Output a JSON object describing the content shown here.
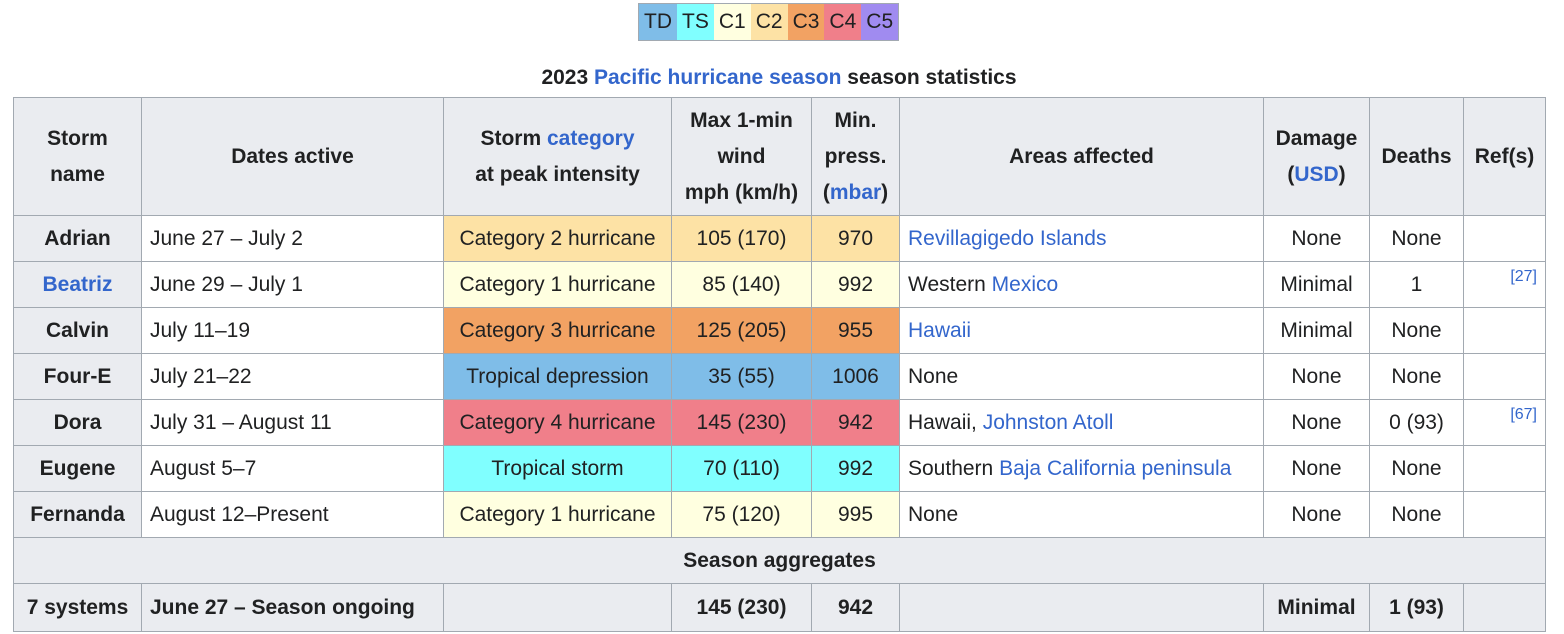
{
  "legend": [
    {
      "label": "TD",
      "color": "#80ccff"
    },
    {
      "label": "TS",
      "color": "#80ffff"
    },
    {
      "label": "C1",
      "color": "#ffffcc"
    },
    {
      "label": "C2",
      "color": "#ffe775"
    },
    {
      "label": "C3",
      "color": "#ffc140"
    },
    {
      "label": "C4",
      "color": "#ff8f20"
    },
    {
      "label": "C5",
      "color": "#ff6060"
    }
  ],
  "legend_colors_display": [
    "#7fbde8",
    "#80ffff",
    "#ffffe0",
    "#fde2a5",
    "#f2a263",
    "#f07f8a",
    "#a08bf0"
  ],
  "caption": {
    "prefix": "2023 ",
    "link": "Pacific hurricane season",
    "suffix": " season statistics"
  },
  "headers": {
    "storm_name": [
      "Storm",
      "name"
    ],
    "dates": "Dates active",
    "category_prefix": "Storm ",
    "category_link": "category",
    "category_suffix": "at peak intensity",
    "wind": [
      "Max 1-min",
      "wind",
      "mph (km/h)"
    ],
    "press_1": "Min.",
    "press_2": "press.",
    "press_link": "mbar",
    "areas": "Areas affected",
    "damage": "Damage",
    "damage_link": "USD",
    "deaths": "Deaths",
    "refs": "Ref(s)"
  },
  "rows": [
    {
      "name": "Adrian",
      "name_link": false,
      "dates": "June 27 – July 2",
      "category": "Category 2 hurricane",
      "color": "#fde2a5",
      "wind": "105 (170)",
      "pressure": "970",
      "areas_text": "",
      "areas_link": "Revillagigedo Islands",
      "damage": "None",
      "deaths": "None",
      "ref": ""
    },
    {
      "name": "Beatriz",
      "name_link": true,
      "dates": "June 29 – July 1",
      "category": "Category 1 hurricane",
      "color": "#ffffe0",
      "wind": "85 (140)",
      "pressure": "992",
      "areas_text": "Western ",
      "areas_link": "Mexico",
      "damage": "Minimal",
      "deaths": "1",
      "ref": "[27]"
    },
    {
      "name": "Calvin",
      "name_link": false,
      "dates": "July 11–19",
      "category": "Category 3 hurricane",
      "color": "#f2a263",
      "wind": "125 (205)",
      "pressure": "955",
      "areas_text": "",
      "areas_link": "Hawaii",
      "damage": "Minimal",
      "deaths": "None",
      "ref": ""
    },
    {
      "name": "Four-E",
      "name_link": false,
      "dates": "July 21–22",
      "category": "Tropical depression",
      "color": "#7fbde8",
      "wind": "35 (55)",
      "pressure": "1006",
      "areas_text": "None",
      "areas_link": "",
      "damage": "None",
      "deaths": "None",
      "ref": ""
    },
    {
      "name": "Dora",
      "name_link": false,
      "dates": "July 31 – August 11",
      "category": "Category 4 hurricane",
      "color": "#f07f8a",
      "wind": "145 (230)",
      "pressure": "942",
      "areas_text": "Hawaii, ",
      "areas_link": "Johnston Atoll",
      "damage": "None",
      "deaths": "0 (93)",
      "ref": "[67]"
    },
    {
      "name": "Eugene",
      "name_link": false,
      "dates": "August 5–7",
      "category": "Tropical storm",
      "color": "#80ffff",
      "wind": "70 (110)",
      "pressure": "992",
      "areas_text": "Southern ",
      "areas_link": "Baja California peninsula",
      "damage": "None",
      "deaths": "None",
      "ref": ""
    },
    {
      "name": "Fernanda",
      "name_link": false,
      "dates": "August 12–Present",
      "category": "Category 1 hurricane",
      "color": "#ffffe0",
      "wind": "75 (120)",
      "pressure": "995",
      "areas_text": "None",
      "areas_link": "",
      "damage": "None",
      "deaths": "None",
      "ref": ""
    }
  ],
  "aggregates": {
    "heading": "Season aggregates",
    "systems": "7 systems",
    "dates": "June 27 – Season ongoing",
    "wind": "145 (230)",
    "pressure": "942",
    "damage": "Minimal",
    "deaths": "1 (93)"
  }
}
